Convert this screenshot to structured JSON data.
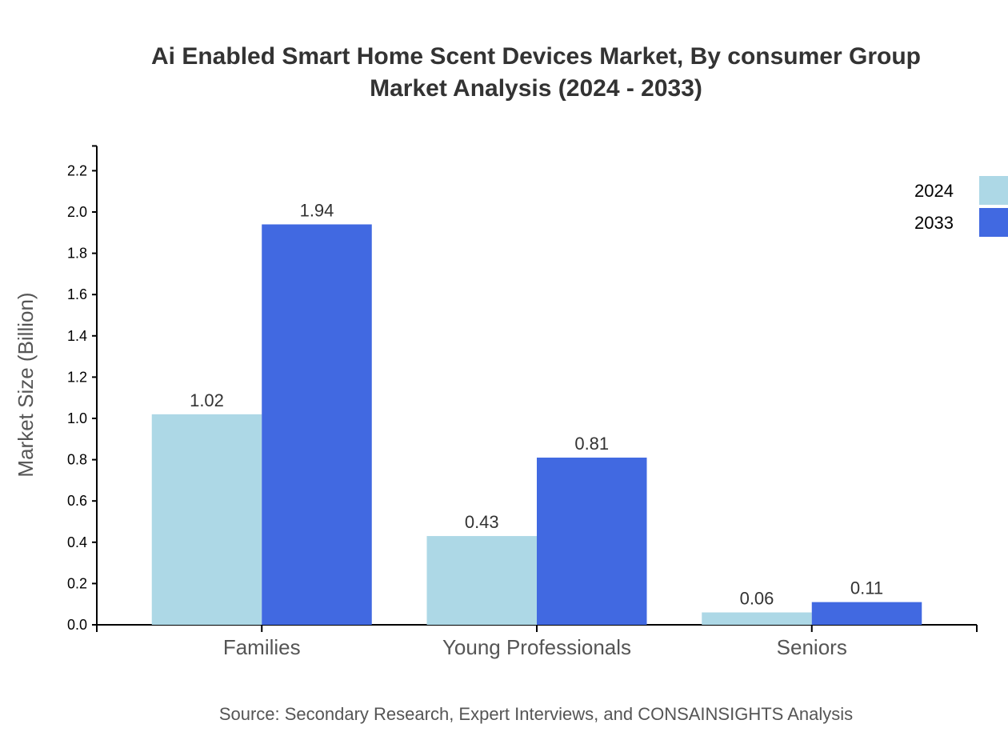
{
  "chart_data": {
    "type": "bar",
    "title_line1": "Ai Enabled Smart Home Scent Devices Market, By consumer Group",
    "title_line2": "Market Analysis (2024 - 2033)",
    "xlabel": "",
    "ylabel": "Market Size (Billion)",
    "ylim": [
      0,
      2.32
    ],
    "yticks": [
      "0.0",
      "0.2",
      "0.4",
      "0.6",
      "0.8",
      "1.0",
      "1.2",
      "1.4",
      "1.6",
      "1.8",
      "2.0",
      "2.2"
    ],
    "categories": [
      "Families",
      "Young Professionals",
      "Seniors"
    ],
    "series": [
      {
        "name": "2024",
        "color": "#ADD8E6",
        "values": [
          1.02,
          0.43,
          0.06
        ]
      },
      {
        "name": "2033",
        "color": "#4169E1",
        "values": [
          1.94,
          0.81,
          0.11
        ]
      }
    ],
    "legend_position": "top-right",
    "grid": false,
    "source": "Source: Secondary Research, Expert Interviews, and CONSAINSIGHTS Analysis"
  }
}
